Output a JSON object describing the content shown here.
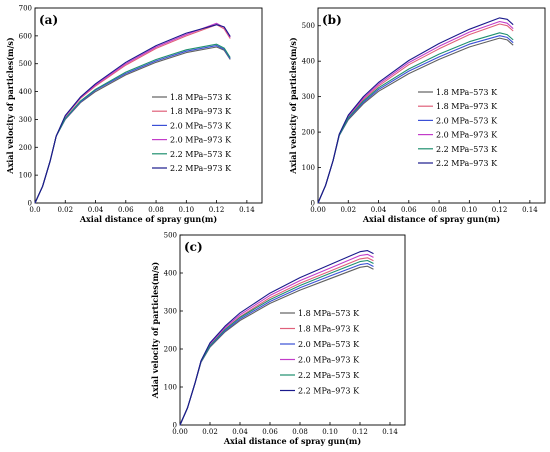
{
  "series_styles": [
    {
      "name": "1.8 MPa–573 K",
      "color": "#606060"
    },
    {
      "name": "1.8 MPa–973 K",
      "color": "#e0607a"
    },
    {
      "name": "2.0 MPa–573 K",
      "color": "#3a4fd6"
    },
    {
      "name": "2.0 MPa–973 K",
      "color": "#c23cc9"
    },
    {
      "name": "2.2 MPa–573 K",
      "color": "#1f8f6f"
    },
    {
      "name": "2.2 MPa–973 K",
      "color": "#1a1a8c"
    }
  ],
  "chart_data": [
    {
      "type": "line",
      "panel_label": "(a)",
      "xlabel": "Axial distance of spray gun(m)",
      "ylabel": "Axial velocity of particles(m/s)",
      "xlim": [
        0.0,
        0.15
      ],
      "ylim": [
        0,
        700
      ],
      "xticks": [
        "0.0",
        "0.02",
        "0.04",
        "0.06",
        "0.08",
        "0.10",
        "0.12",
        "0.14"
      ],
      "yticks": [
        "0",
        "100",
        "200",
        "300",
        "400",
        "500",
        "600",
        "700"
      ],
      "legend": "right",
      "series": [
        {
          "name": "1.8 MPa–573 K",
          "x": [
            0.0,
            0.005,
            0.01,
            0.014,
            0.02,
            0.03,
            0.04,
            0.06,
            0.08,
            0.1,
            0.12,
            0.125,
            0.129
          ],
          "y": [
            0,
            60,
            150,
            240,
            300,
            360,
            400,
            460,
            505,
            540,
            560,
            548,
            515
          ]
        },
        {
          "name": "1.8 MPa–973 K",
          "x": [
            0.0,
            0.005,
            0.01,
            0.014,
            0.02,
            0.03,
            0.04,
            0.06,
            0.08,
            0.1,
            0.12,
            0.125,
            0.129
          ],
          "y": [
            0,
            60,
            150,
            240,
            310,
            375,
            420,
            495,
            555,
            600,
            640,
            625,
            590
          ]
        },
        {
          "name": "2.0 MPa–573 K",
          "x": [
            0.0,
            0.005,
            0.01,
            0.014,
            0.02,
            0.03,
            0.04,
            0.06,
            0.08,
            0.1,
            0.12,
            0.125,
            0.129
          ],
          "y": [
            0,
            60,
            150,
            240,
            302,
            363,
            405,
            465,
            510,
            545,
            565,
            552,
            518
          ]
        },
        {
          "name": "2.0 MPa–973 K",
          "x": [
            0.0,
            0.005,
            0.01,
            0.014,
            0.02,
            0.03,
            0.04,
            0.06,
            0.08,
            0.1,
            0.12,
            0.125,
            0.129
          ],
          "y": [
            0,
            60,
            150,
            240,
            312,
            378,
            424,
            500,
            560,
            605,
            645,
            630,
            595
          ]
        },
        {
          "name": "2.2 MPa–573 K",
          "x": [
            0.0,
            0.005,
            0.01,
            0.014,
            0.02,
            0.03,
            0.04,
            0.06,
            0.08,
            0.1,
            0.12,
            0.125,
            0.129
          ],
          "y": [
            0,
            60,
            150,
            240,
            304,
            366,
            408,
            470,
            515,
            550,
            570,
            556,
            522
          ]
        },
        {
          "name": "2.2 MPa–973 K",
          "x": [
            0.0,
            0.005,
            0.01,
            0.014,
            0.02,
            0.03,
            0.04,
            0.06,
            0.08,
            0.1,
            0.12,
            0.125,
            0.129
          ],
          "y": [
            0,
            60,
            150,
            240,
            314,
            380,
            428,
            505,
            565,
            610,
            640,
            632,
            598
          ]
        }
      ]
    },
    {
      "type": "line",
      "panel_label": "(b)",
      "xlabel": "Axial distance of spray gun(m)",
      "ylabel": "Axial velocity of particles(m/s)",
      "xlim": [
        0.0,
        0.15
      ],
      "ylim": [
        0,
        550
      ],
      "xticks": [
        "0.00",
        "0.02",
        "0.04",
        "0.06",
        "0.08",
        "0.10",
        "0.12",
        "0.14"
      ],
      "yticks": [
        "0",
        "100",
        "200",
        "300",
        "400",
        "500"
      ],
      "legend": "right",
      "series": [
        {
          "name": "1.8 MPa–573 K",
          "x": [
            0.0,
            0.005,
            0.01,
            0.014,
            0.02,
            0.03,
            0.04,
            0.06,
            0.08,
            0.1,
            0.12,
            0.125,
            0.129
          ],
          "y": [
            0,
            50,
            120,
            190,
            235,
            280,
            315,
            365,
            405,
            440,
            465,
            460,
            445
          ]
        },
        {
          "name": "1.8 MPa–973 K",
          "x": [
            0.0,
            0.005,
            0.01,
            0.014,
            0.02,
            0.03,
            0.04,
            0.06,
            0.08,
            0.1,
            0.12,
            0.125,
            0.129
          ],
          "y": [
            0,
            50,
            120,
            192,
            242,
            292,
            330,
            390,
            435,
            475,
            505,
            500,
            485
          ]
        },
        {
          "name": "2.0 MPa–573 K",
          "x": [
            0.0,
            0.005,
            0.01,
            0.014,
            0.02,
            0.03,
            0.04,
            0.06,
            0.08,
            0.1,
            0.12,
            0.125,
            0.129
          ],
          "y": [
            0,
            50,
            120,
            190,
            238,
            284,
            320,
            372,
            412,
            448,
            472,
            467,
            452
          ]
        },
        {
          "name": "2.0 MPa–973 K",
          "x": [
            0.0,
            0.005,
            0.01,
            0.014,
            0.02,
            0.03,
            0.04,
            0.06,
            0.08,
            0.1,
            0.12,
            0.125,
            0.129
          ],
          "y": [
            0,
            50,
            120,
            193,
            245,
            296,
            335,
            396,
            442,
            482,
            512,
            507,
            492
          ]
        },
        {
          "name": "2.2 MPa–573 K",
          "x": [
            0.0,
            0.005,
            0.01,
            0.014,
            0.02,
            0.03,
            0.04,
            0.06,
            0.08,
            0.1,
            0.12,
            0.125,
            0.129
          ],
          "y": [
            0,
            50,
            120,
            191,
            240,
            288,
            325,
            378,
            420,
            455,
            480,
            475,
            460
          ]
        },
        {
          "name": "2.2 MPa–973 K",
          "x": [
            0.0,
            0.005,
            0.01,
            0.014,
            0.02,
            0.03,
            0.04,
            0.06,
            0.08,
            0.1,
            0.12,
            0.125,
            0.129
          ],
          "y": [
            0,
            50,
            120,
            194,
            248,
            300,
            340,
            402,
            450,
            490,
            522,
            518,
            503
          ]
        }
      ]
    },
    {
      "type": "line",
      "panel_label": "(c)",
      "xlabel": "Axial distance of spray gun(m)",
      "ylabel": "Axial velocity of particles(m/s)",
      "xlim": [
        0.0,
        0.15
      ],
      "ylim": [
        0,
        500
      ],
      "xticks": [
        "0.00",
        "0.02",
        "0.04",
        "0.06",
        "0.08",
        "0.10",
        "0.12",
        "0.14"
      ],
      "yticks": [
        "0",
        "100",
        "200",
        "300",
        "400",
        "500"
      ],
      "legend": "right",
      "series": [
        {
          "name": "1.8 MPa–573 K",
          "x": [
            0.0,
            0.005,
            0.01,
            0.014,
            0.02,
            0.03,
            0.04,
            0.06,
            0.08,
            0.1,
            0.12,
            0.125,
            0.129
          ],
          "y": [
            0,
            45,
            110,
            165,
            205,
            245,
            275,
            320,
            355,
            385,
            415,
            418,
            410
          ]
        },
        {
          "name": "1.8 MPa–973 K",
          "x": [
            0.0,
            0.005,
            0.01,
            0.014,
            0.02,
            0.03,
            0.04,
            0.06,
            0.08,
            0.1,
            0.12,
            0.125,
            0.129
          ],
          "y": [
            0,
            45,
            110,
            167,
            210,
            252,
            285,
            335,
            373,
            405,
            437,
            440,
            432
          ]
        },
        {
          "name": "2.0 MPa–573 K",
          "x": [
            0.0,
            0.005,
            0.01,
            0.014,
            0.02,
            0.03,
            0.04,
            0.06,
            0.08,
            0.1,
            0.12,
            0.125,
            0.129
          ],
          "y": [
            0,
            45,
            110,
            166,
            207,
            248,
            279,
            325,
            361,
            392,
            422,
            425,
            417
          ]
        },
        {
          "name": "2.0 MPa–973 K",
          "x": [
            0.0,
            0.005,
            0.01,
            0.014,
            0.02,
            0.03,
            0.04,
            0.06,
            0.08,
            0.1,
            0.12,
            0.125,
            0.129
          ],
          "y": [
            0,
            45,
            110,
            168,
            213,
            256,
            290,
            341,
            380,
            413,
            446,
            449,
            441
          ]
        },
        {
          "name": "2.2 MPa–573 K",
          "x": [
            0.0,
            0.005,
            0.01,
            0.014,
            0.02,
            0.03,
            0.04,
            0.06,
            0.08,
            0.1,
            0.12,
            0.125,
            0.129
          ],
          "y": [
            0,
            45,
            110,
            167,
            209,
            251,
            283,
            330,
            367,
            399,
            430,
            433,
            425
          ]
        },
        {
          "name": "2.2 MPa–973 K",
          "x": [
            0.0,
            0.005,
            0.01,
            0.014,
            0.02,
            0.03,
            0.04,
            0.06,
            0.08,
            0.1,
            0.12,
            0.125,
            0.129
          ],
          "y": [
            0,
            45,
            110,
            169,
            216,
            260,
            295,
            347,
            388,
            422,
            456,
            459,
            451
          ]
        }
      ]
    }
  ]
}
